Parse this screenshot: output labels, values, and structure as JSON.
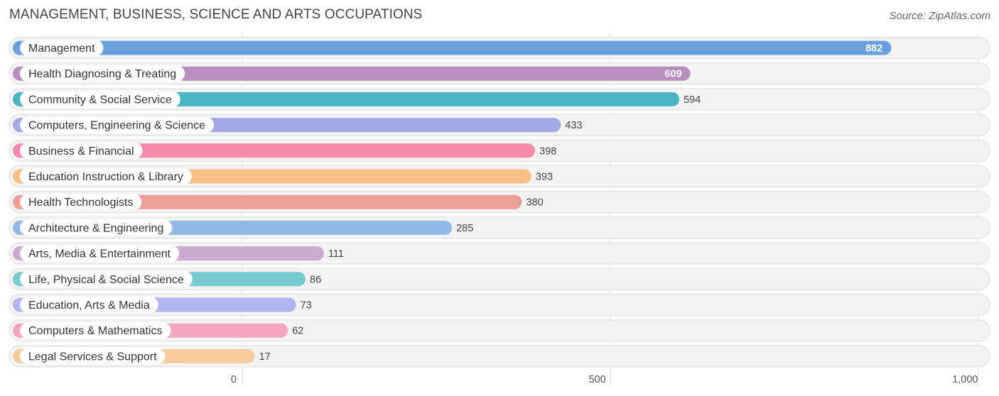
{
  "header": {
    "title": "MANAGEMENT, BUSINESS, SCIENCE AND ARTS OCCUPATIONS",
    "source": "Source: ZipAtlas.com"
  },
  "chart_data": {
    "type": "bar",
    "orientation": "horizontal",
    "title": "MANAGEMENT, BUSINESS, SCIENCE AND ARTS OCCUPATIONS",
    "xlabel": "",
    "ylabel": "",
    "xlim": [
      0,
      1000
    ],
    "grid": true,
    "ticks": [
      {
        "value": 0,
        "label": "0"
      },
      {
        "value": 500,
        "label": "500"
      },
      {
        "value": 1000,
        "label": "1,000"
      }
    ],
    "categories": [
      "Management",
      "Health Diagnosing & Treating",
      "Community & Social Service",
      "Computers, Engineering & Science",
      "Business & Financial",
      "Education Instruction & Library",
      "Health Technologists",
      "Architecture & Engineering",
      "Arts, Media & Entertainment",
      "Life, Physical & Social Science",
      "Education, Arts & Media",
      "Computers & Mathematics",
      "Legal Services & Support"
    ],
    "values": [
      882,
      609,
      594,
      433,
      398,
      393,
      380,
      285,
      111,
      86,
      73,
      62,
      17
    ],
    "colors": [
      "#6a9fdf",
      "#b98dc0",
      "#4bb4c4",
      "#a3a8e6",
      "#f58bac",
      "#f8bf86",
      "#ec9e97",
      "#92b8e8",
      "#cbaad2",
      "#78cbcf",
      "#b0b5ee",
      "#f5a5c0",
      "#f8cb9f"
    ]
  }
}
